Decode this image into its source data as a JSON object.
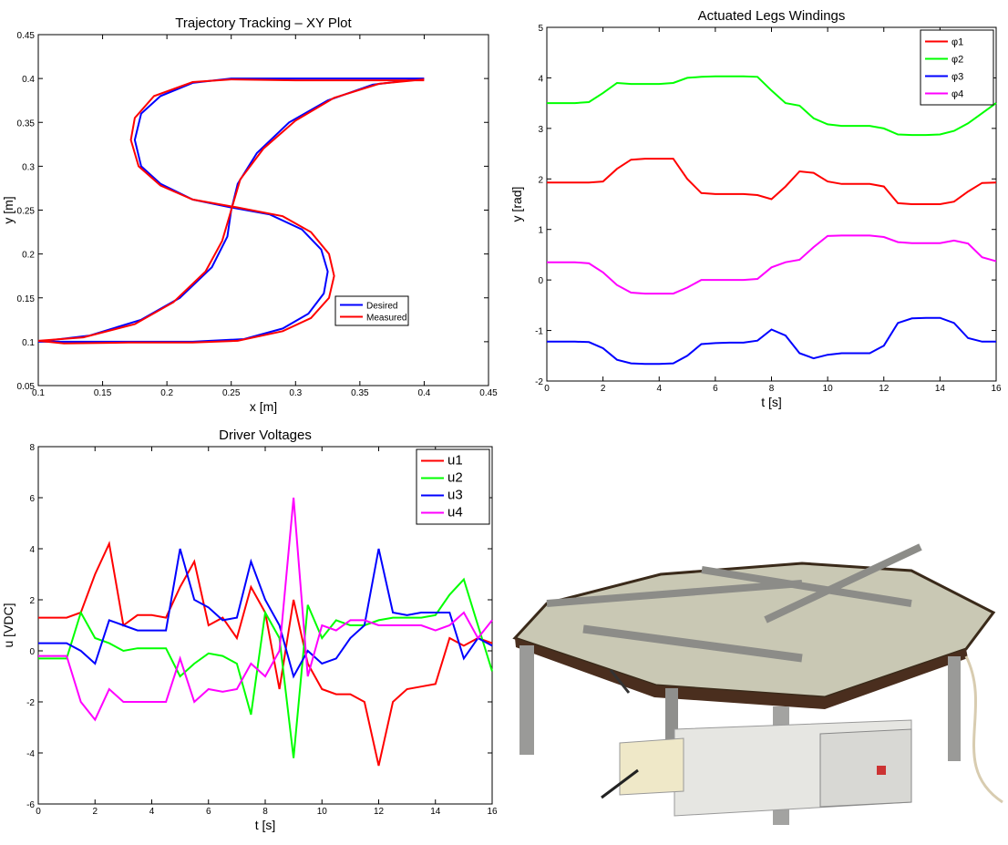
{
  "chart_data": [
    {
      "type": "line",
      "title": "Trajectory Tracking – XY Plot",
      "x_label": "x [m]",
      "y_label": "y [m]",
      "xlim": [
        0.1,
        0.45
      ],
      "xticks": [
        0.1,
        0.15,
        0.2,
        0.25,
        0.3,
        0.35,
        0.4,
        0.45
      ],
      "ylim": [
        0.05,
        0.45
      ],
      "yticks": [
        0.05,
        0.1,
        0.15,
        0.2,
        0.25,
        0.3,
        0.35,
        0.4,
        0.45
      ],
      "legend": "lower right",
      "series": [
        {
          "name": "Desired",
          "color": "#0000ff",
          "x": [
            0.4,
            0.35,
            0.3,
            0.25,
            0.22,
            0.195,
            0.18,
            0.175,
            0.18,
            0.195,
            0.22,
            0.25,
            0.28,
            0.305,
            0.32,
            0.325,
            0.322,
            0.31,
            0.29,
            0.26,
            0.22,
            0.17,
            0.13,
            0.1,
            0.14,
            0.18,
            0.21,
            0.235,
            0.247,
            0.25,
            0.255,
            0.27,
            0.295,
            0.325,
            0.36,
            0.4
          ],
          "values": [
            0.4,
            0.4,
            0.4,
            0.4,
            0.395,
            0.38,
            0.36,
            0.33,
            0.3,
            0.28,
            0.262,
            0.253,
            0.245,
            0.228,
            0.205,
            0.18,
            0.155,
            0.132,
            0.115,
            0.103,
            0.1,
            0.1,
            0.1,
            0.1,
            0.107,
            0.125,
            0.15,
            0.185,
            0.22,
            0.25,
            0.28,
            0.315,
            0.35,
            0.375,
            0.393,
            0.4
          ]
        },
        {
          "name": "Measured",
          "color": "#ff0000",
          "x": [
            0.4,
            0.35,
            0.3,
            0.25,
            0.22,
            0.19,
            0.175,
            0.172,
            0.178,
            0.195,
            0.22,
            0.255,
            0.29,
            0.312,
            0.326,
            0.33,
            0.326,
            0.312,
            0.29,
            0.255,
            0.22,
            0.17,
            0.12,
            0.1,
            0.135,
            0.175,
            0.205,
            0.23,
            0.243,
            0.25,
            0.257,
            0.275,
            0.3,
            0.33,
            0.365,
            0.4
          ],
          "values": [
            0.398,
            0.398,
            0.398,
            0.399,
            0.396,
            0.38,
            0.355,
            0.33,
            0.3,
            0.278,
            0.262,
            0.253,
            0.243,
            0.225,
            0.2,
            0.175,
            0.15,
            0.127,
            0.112,
            0.101,
            0.099,
            0.099,
            0.098,
            0.101,
            0.105,
            0.12,
            0.145,
            0.18,
            0.215,
            0.25,
            0.285,
            0.32,
            0.352,
            0.378,
            0.394,
            0.399
          ]
        }
      ]
    },
    {
      "type": "line",
      "title": "Actuated Legs Windings",
      "x_label": "t [s]",
      "y_label": "y [rad]",
      "xlim": [
        0,
        16
      ],
      "xticks": [
        0,
        2,
        4,
        6,
        8,
        10,
        12,
        14,
        16
      ],
      "ylim": [
        -2,
        5
      ],
      "yticks": [
        -2,
        -1,
        0,
        1,
        2,
        3,
        4,
        5
      ],
      "legend": "upper right",
      "x": [
        0,
        0.5,
        1,
        1.5,
        2,
        2.5,
        3,
        3.5,
        4,
        4.5,
        5,
        5.5,
        6,
        6.5,
        7,
        7.5,
        8,
        8.5,
        9,
        9.5,
        10,
        10.5,
        11,
        11.5,
        12,
        12.5,
        13,
        13.5,
        14,
        14.5,
        15,
        15.5,
        16
      ],
      "series": [
        {
          "name": "φ1",
          "color": "#ff0000",
          "values": [
            1.93,
            1.93,
            1.93,
            1.93,
            1.95,
            2.2,
            2.38,
            2.4,
            2.4,
            2.4,
            2.0,
            1.72,
            1.7,
            1.7,
            1.7,
            1.68,
            1.6,
            1.85,
            2.15,
            2.12,
            1.95,
            1.9,
            1.9,
            1.9,
            1.85,
            1.52,
            1.5,
            1.5,
            1.5,
            1.55,
            1.75,
            1.92,
            1.93
          ]
        },
        {
          "name": "φ2",
          "color": "#00ff00",
          "values": [
            3.5,
            3.5,
            3.5,
            3.52,
            3.7,
            3.9,
            3.88,
            3.88,
            3.88,
            3.9,
            4.0,
            4.02,
            4.03,
            4.03,
            4.03,
            4.02,
            3.75,
            3.5,
            3.45,
            3.2,
            3.08,
            3.05,
            3.05,
            3.05,
            3.0,
            2.88,
            2.87,
            2.87,
            2.88,
            2.95,
            3.1,
            3.3,
            3.5
          ]
        },
        {
          "name": "φ3",
          "color": "#0000ff",
          "values": [
            -1.22,
            -1.22,
            -1.22,
            -1.23,
            -1.35,
            -1.58,
            -1.65,
            -1.66,
            -1.66,
            -1.65,
            -1.5,
            -1.27,
            -1.25,
            -1.24,
            -1.24,
            -1.2,
            -0.98,
            -1.1,
            -1.45,
            -1.55,
            -1.48,
            -1.45,
            -1.45,
            -1.45,
            -1.3,
            -0.85,
            -0.76,
            -0.75,
            -0.75,
            -0.85,
            -1.15,
            -1.22,
            -1.22
          ]
        },
        {
          "name": "φ4",
          "color": "#ff00ff",
          "values": [
            0.35,
            0.35,
            0.35,
            0.33,
            0.15,
            -0.1,
            -0.25,
            -0.27,
            -0.27,
            -0.27,
            -0.15,
            0.0,
            0.0,
            0.0,
            0.0,
            0.02,
            0.25,
            0.35,
            0.4,
            0.65,
            0.87,
            0.88,
            0.88,
            0.88,
            0.85,
            0.75,
            0.73,
            0.73,
            0.73,
            0.78,
            0.72,
            0.45,
            0.37
          ]
        }
      ]
    },
    {
      "type": "line",
      "title": "Driver Voltages",
      "x_label": "t [s]",
      "y_label": "u [VDC]",
      "xlim": [
        0,
        16
      ],
      "xticks": [
        0,
        2,
        4,
        6,
        8,
        10,
        12,
        14,
        16
      ],
      "ylim": [
        -6,
        8
      ],
      "yticks": [
        -6,
        -4,
        -2,
        0,
        2,
        4,
        6,
        8
      ],
      "legend": "upper right",
      "x": [
        0,
        0.5,
        1,
        1.5,
        2,
        2.5,
        3,
        3.5,
        4,
        4.5,
        5,
        5.5,
        6,
        6.5,
        7,
        7.5,
        8,
        8.5,
        9,
        9.5,
        10,
        10.5,
        11,
        11.5,
        12,
        12.5,
        13,
        13.5,
        14,
        14.5,
        15,
        15.5,
        16
      ],
      "series": [
        {
          "name": "u1",
          "color": "#ff0000",
          "values": [
            1.3,
            1.3,
            1.3,
            1.5,
            3.0,
            4.2,
            1.0,
            1.4,
            1.4,
            1.3,
            2.5,
            3.5,
            1.0,
            1.3,
            0.5,
            2.5,
            1.5,
            -1.5,
            2.0,
            -0.5,
            -1.5,
            -1.7,
            -1.7,
            -2.0,
            -4.5,
            -2.0,
            -1.5,
            -1.4,
            -1.3,
            0.5,
            0.2,
            0.5,
            0.3
          ]
        },
        {
          "name": "u2",
          "color": "#00ff00",
          "values": [
            -0.3,
            -0.3,
            -0.3,
            1.5,
            0.5,
            0.3,
            0,
            0.1,
            0.1,
            0.1,
            -1.0,
            -0.5,
            -0.1,
            -0.2,
            -0.5,
            -2.5,
            1.5,
            0.5,
            -4.2,
            1.8,
            0.5,
            1.2,
            1.0,
            1.0,
            1.2,
            1.3,
            1.3,
            1.3,
            1.4,
            2.2,
            2.8,
            1.0,
            -0.8
          ]
        },
        {
          "name": "u3",
          "color": "#0000ff",
          "values": [
            0.3,
            0.3,
            0.3,
            0.0,
            -0.5,
            1.2,
            1.0,
            0.8,
            0.8,
            0.8,
            4.0,
            2.0,
            1.7,
            1.2,
            1.3,
            3.5,
            2.0,
            1.0,
            -1.0,
            0.0,
            -0.5,
            -0.3,
            0.5,
            1.0,
            4.0,
            1.5,
            1.4,
            1.5,
            1.5,
            1.5,
            -0.3,
            0.5,
            0.2
          ]
        },
        {
          "name": "u4",
          "color": "#ff00ff",
          "values": [
            -0.2,
            -0.2,
            -0.2,
            -2.0,
            -2.7,
            -1.5,
            -2.0,
            -2.0,
            -2.0,
            -2.0,
            -0.3,
            -2.0,
            -1.5,
            -1.6,
            -1.5,
            -0.5,
            -1.0,
            0,
            6.0,
            -1.0,
            1.0,
            0.8,
            1.2,
            1.2,
            1.0,
            1.0,
            1.0,
            1.0,
            0.8,
            1.0,
            1.5,
            0.5,
            1.2
          ]
        }
      ]
    }
  ]
}
